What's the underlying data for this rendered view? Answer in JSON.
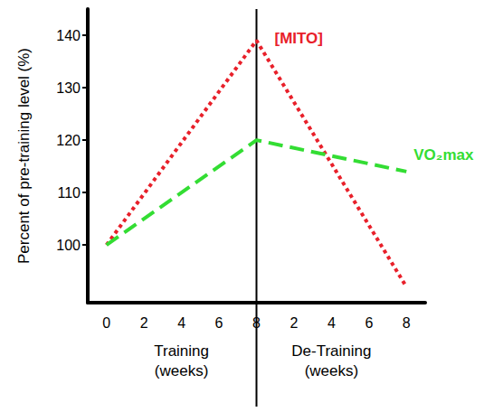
{
  "chart_data": {
    "type": "line",
    "y_label": "Percent of pre-training level (%)",
    "categories": [
      "0",
      "2",
      "4",
      "6",
      "8",
      "2",
      "4",
      "6",
      "8"
    ],
    "x_groups": [
      {
        "label": "Training\n(weeks)",
        "start": 0,
        "end": 4
      },
      {
        "label": "De-Training\n(weeks)",
        "start": 4,
        "end": 8
      }
    ],
    "series": [
      {
        "name": "[MITO]",
        "color": "#e8202a",
        "line_style": "dotted",
        "values": [
          100,
          null,
          null,
          null,
          139,
          null,
          null,
          null,
          92
        ]
      },
      {
        "name": "VO₂max",
        "color": "#33dd33",
        "line_style": "dashed",
        "values": [
          100,
          null,
          null,
          null,
          120,
          null,
          null,
          null,
          114
        ]
      }
    ],
    "ylim": [
      89,
      145
    ],
    "yticks": [
      100,
      110,
      120,
      130,
      140
    ],
    "grid": false
  }
}
